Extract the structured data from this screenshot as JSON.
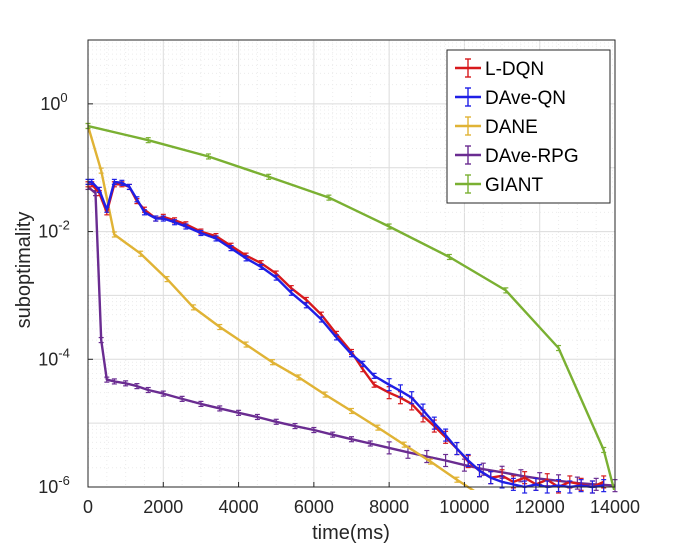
{
  "chart_data": {
    "type": "line",
    "title": "",
    "xlabel": "time(ms)",
    "ylabel": "suboptimality",
    "xlim": [
      0,
      14000
    ],
    "ylim": [
      1e-06,
      10
    ],
    "yscale": "log",
    "grid": true,
    "legend_position": "top-right",
    "x_ticks": [
      0,
      2000,
      4000,
      6000,
      8000,
      10000,
      12000,
      14000
    ],
    "x_tick_labels": [
      "0",
      "2000",
      "4000",
      "6000",
      "8000",
      "10000",
      "12000",
      "14000"
    ],
    "y_ticks": [
      1e-06,
      0.0001,
      0.01,
      1
    ],
    "y_tick_labels": [
      {
        "base": "10",
        "exp": "-6"
      },
      {
        "base": "10",
        "exp": "-4"
      },
      {
        "base": "10",
        "exp": "-2"
      },
      {
        "base": "10",
        "exp": "0"
      }
    ],
    "series": [
      {
        "name": "L-DQN",
        "color": "#d7191c",
        "points": [
          [
            0,
            0.055
          ],
          [
            100,
            0.055
          ],
          [
            300,
            0.04
          ],
          [
            500,
            0.02
          ],
          [
            700,
            0.055
          ],
          [
            900,
            0.055
          ],
          [
            1100,
            0.05
          ],
          [
            1300,
            0.03
          ],
          [
            1500,
            0.022
          ],
          [
            1800,
            0.016
          ],
          [
            2000,
            0.017
          ],
          [
            2300,
            0.015
          ],
          [
            2600,
            0.013
          ],
          [
            3000,
            0.01
          ],
          [
            3400,
            0.0085
          ],
          [
            3800,
            0.006
          ],
          [
            4200,
            0.0042
          ],
          [
            4600,
            0.0032
          ],
          [
            5000,
            0.0022
          ],
          [
            5400,
            0.0013
          ],
          [
            5800,
            0.00085
          ],
          [
            6200,
            0.0005
          ],
          [
            6600,
            0.00025
          ],
          [
            7000,
            0.00013
          ],
          [
            7300,
            7e-05
          ],
          [
            7600,
            4e-05
          ],
          [
            8000,
            3e-05
          ],
          [
            8300,
            2.5e-05
          ],
          [
            8600,
            2e-05
          ],
          [
            8900,
            1.3e-05
          ],
          [
            9200,
            9e-06
          ],
          [
            9500,
            6e-06
          ],
          [
            9800,
            4e-06
          ],
          [
            10100,
            2.5e-06
          ],
          [
            10400,
            1.8e-06
          ],
          [
            10700,
            1.4e-06
          ],
          [
            11000,
            1.5e-06
          ],
          [
            11300,
            1.2e-06
          ],
          [
            11600,
            1.4e-06
          ],
          [
            11900,
            1.1e-06
          ],
          [
            12200,
            1.3e-06
          ],
          [
            12500,
            1e-06
          ],
          [
            12800,
            1.2e-06
          ],
          [
            13100,
            1.1e-06
          ],
          [
            13400,
            1e-06
          ],
          [
            13700,
            1.2e-06
          ]
        ]
      },
      {
        "name": "DAve-QN",
        "color": "#1f1fe6",
        "points": [
          [
            0,
            0.06
          ],
          [
            100,
            0.06
          ],
          [
            300,
            0.045
          ],
          [
            500,
            0.022
          ],
          [
            700,
            0.06
          ],
          [
            900,
            0.058
          ],
          [
            1100,
            0.05
          ],
          [
            1300,
            0.032
          ],
          [
            1500,
            0.02
          ],
          [
            1800,
            0.016
          ],
          [
            2000,
            0.016
          ],
          [
            2300,
            0.014
          ],
          [
            2600,
            0.012
          ],
          [
            3000,
            0.0095
          ],
          [
            3400,
            0.0078
          ],
          [
            3800,
            0.0055
          ],
          [
            4200,
            0.0038
          ],
          [
            4600,
            0.0028
          ],
          [
            5000,
            0.0019
          ],
          [
            5400,
            0.0011
          ],
          [
            5800,
            0.0007
          ],
          [
            6200,
            0.00042
          ],
          [
            6600,
            0.00022
          ],
          [
            7000,
            0.00012
          ],
          [
            7300,
            8.5e-05
          ],
          [
            7600,
            5.5e-05
          ],
          [
            8000,
            4e-05
          ],
          [
            8300,
            3.2e-05
          ],
          [
            8600,
            2.5e-05
          ],
          [
            8900,
            1.6e-05
          ],
          [
            9200,
            1e-05
          ],
          [
            9500,
            6.5e-06
          ],
          [
            9800,
            4e-06
          ],
          [
            10100,
            2.6e-06
          ],
          [
            10400,
            1.8e-06
          ],
          [
            10700,
            1.4e-06
          ],
          [
            11000,
            1.2e-06
          ],
          [
            11300,
            1.1e-06
          ],
          [
            11600,
            1e-06
          ],
          [
            11900,
            1.1e-06
          ],
          [
            12200,
            1e-06
          ],
          [
            12500,
            1.05e-06
          ],
          [
            12800,
            1e-06
          ],
          [
            13100,
            1.05e-06
          ],
          [
            13400,
            1e-06
          ],
          [
            13700,
            1.05e-06
          ]
        ]
      },
      {
        "name": "DANE",
        "color": "#e0b335",
        "points": [
          [
            0,
            0.45
          ],
          [
            350,
            0.09
          ],
          [
            700,
            0.009
          ],
          [
            1400,
            0.0045
          ],
          [
            2100,
            0.0018
          ],
          [
            2800,
            0.00065
          ],
          [
            3500,
            0.00032
          ],
          [
            4200,
            0.00017
          ],
          [
            4900,
            9e-05
          ],
          [
            5600,
            5.2e-05
          ],
          [
            6300,
            2.8e-05
          ],
          [
            7000,
            1.55e-05
          ],
          [
            7700,
            8.5e-06
          ],
          [
            8400,
            4.6e-06
          ],
          [
            9100,
            2.5e-06
          ],
          [
            9800,
            1.3e-06
          ],
          [
            10500,
            7e-07
          ]
        ]
      },
      {
        "name": "DAve-RPG",
        "color": "#6a2c91",
        "points": [
          [
            0,
            0.05
          ],
          [
            200,
            0.04
          ],
          [
            350,
            0.0002
          ],
          [
            500,
            4.8e-05
          ],
          [
            700,
            4.5e-05
          ],
          [
            1000,
            4.2e-05
          ],
          [
            1300,
            3.8e-05
          ],
          [
            1600,
            3.3e-05
          ],
          [
            2000,
            2.9e-05
          ],
          [
            2500,
            2.4e-05
          ],
          [
            3000,
            2e-05
          ],
          [
            3500,
            1.7e-05
          ],
          [
            4000,
            1.45e-05
          ],
          [
            4500,
            1.25e-05
          ],
          [
            5000,
            1.05e-05
          ],
          [
            5500,
            9e-06
          ],
          [
            6000,
            7.8e-06
          ],
          [
            6500,
            6.6e-06
          ],
          [
            7000,
            5.6e-06
          ],
          [
            7500,
            4.8e-06
          ],
          [
            8000,
            4.1e-06
          ],
          [
            8500,
            3.5e-06
          ],
          [
            9000,
            3e-06
          ],
          [
            9500,
            2.6e-06
          ],
          [
            10000,
            2.2e-06
          ],
          [
            10500,
            1.9e-06
          ],
          [
            11000,
            1.7e-06
          ],
          [
            11500,
            1.5e-06
          ],
          [
            12000,
            1.35e-06
          ],
          [
            12500,
            1.25e-06
          ],
          [
            13000,
            1.15e-06
          ],
          [
            13500,
            1.1e-06
          ],
          [
            14000,
            1.05e-06
          ]
        ]
      },
      {
        "name": "GIANT",
        "color": "#7ab032",
        "points": [
          [
            0,
            0.45
          ],
          [
            1600,
            0.27
          ],
          [
            3200,
            0.15
          ],
          [
            4800,
            0.072
          ],
          [
            6400,
            0.034
          ],
          [
            8000,
            0.012
          ],
          [
            9600,
            0.004
          ],
          [
            11100,
            0.0012
          ],
          [
            12500,
            0.00015
          ],
          [
            13700,
            3.8e-06
          ],
          [
            14000,
            8e-07
          ]
        ]
      }
    ]
  }
}
